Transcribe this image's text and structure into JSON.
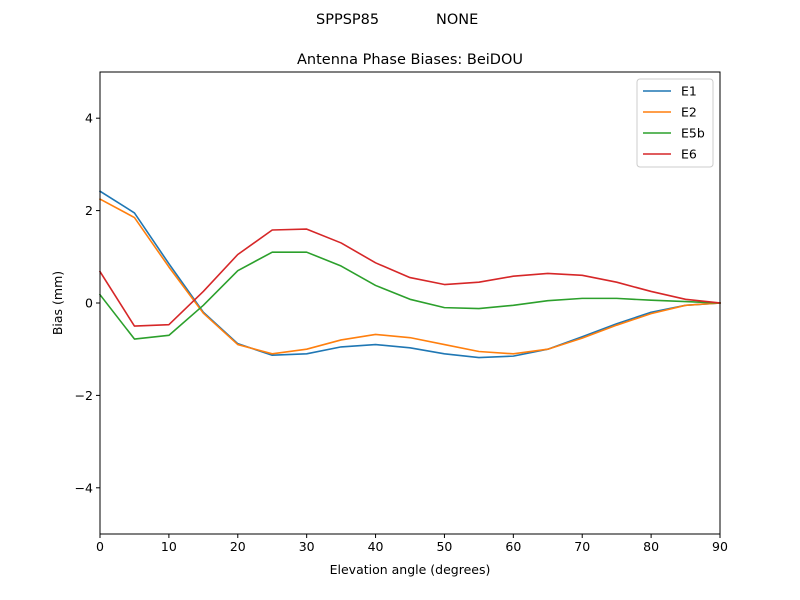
{
  "figure": {
    "suptitle_left": "SPPSP85",
    "suptitle_right": "NONE"
  },
  "chart_data": {
    "type": "line",
    "title": "Antenna Phase Biases: BeiDOU",
    "xlabel": "Elevation angle (degrees)",
    "ylabel": "Bias (mm)",
    "xlim": [
      0,
      90
    ],
    "ylim": [
      -5,
      5
    ],
    "xticks": [
      0,
      10,
      20,
      30,
      40,
      50,
      60,
      70,
      80,
      90
    ],
    "yticks": [
      -4,
      -2,
      0,
      2,
      4
    ],
    "ytick_labels": [
      "−4",
      "−2",
      "0",
      "2",
      "4"
    ],
    "legend_position": "top-right",
    "grid": false,
    "x": [
      0,
      5,
      10,
      15,
      20,
      25,
      30,
      35,
      40,
      45,
      50,
      55,
      60,
      65,
      70,
      75,
      80,
      85,
      90
    ],
    "series": [
      {
        "name": "E1",
        "color": "#1f77b4",
        "values": [
          2.42,
          1.95,
          0.85,
          -0.2,
          -0.88,
          -1.13,
          -1.1,
          -0.95,
          -0.9,
          -0.97,
          -1.1,
          -1.18,
          -1.15,
          -1.0,
          -0.73,
          -0.45,
          -0.2,
          -0.05,
          0.0
        ]
      },
      {
        "name": "E2",
        "color": "#ff7f0e",
        "values": [
          2.25,
          1.85,
          0.78,
          -0.22,
          -0.9,
          -1.1,
          -1.0,
          -0.8,
          -0.68,
          -0.75,
          -0.9,
          -1.05,
          -1.1,
          -1.0,
          -0.76,
          -0.48,
          -0.23,
          -0.05,
          0.0
        ]
      },
      {
        "name": "E5b",
        "color": "#2ca02c",
        "values": [
          0.18,
          -0.78,
          -0.7,
          -0.05,
          0.7,
          1.1,
          1.1,
          0.8,
          0.38,
          0.08,
          -0.1,
          -0.12,
          -0.05,
          0.05,
          0.1,
          0.1,
          0.06,
          0.03,
          0.0
        ]
      },
      {
        "name": "E6",
        "color": "#d62728",
        "values": [
          0.68,
          -0.5,
          -0.47,
          0.25,
          1.05,
          1.58,
          1.6,
          1.3,
          0.87,
          0.55,
          0.4,
          0.45,
          0.58,
          0.64,
          0.6,
          0.45,
          0.25,
          0.08,
          0.0
        ]
      }
    ]
  }
}
